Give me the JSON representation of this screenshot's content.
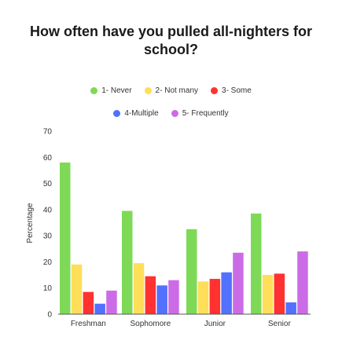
{
  "chart_data": {
    "type": "bar",
    "title": "How often have you pulled all-nighters for school?",
    "title_lines": [
      "How often have you pulled all-nighters for",
      "school?"
    ],
    "ylabel": "Percentage",
    "xlabel": "",
    "ylim": [
      0,
      70
    ],
    "yticks": [
      "0",
      "10",
      "20",
      "30",
      "40",
      "50",
      "60",
      "70"
    ],
    "categories": [
      "Freshman",
      "Sophomore",
      "Junior",
      "Senior"
    ],
    "series": [
      {
        "name": "1- Never",
        "color": "#7ed957",
        "values": [
          58,
          39.5,
          32.5,
          38.5
        ]
      },
      {
        "name": "2- Not many",
        "color": "#ffde59",
        "values": [
          19,
          19.5,
          12.5,
          15
        ]
      },
      {
        "name": "3- Some",
        "color": "#ff3131",
        "values": [
          8.5,
          14.5,
          13.5,
          15.5
        ]
      },
      {
        "name": "4-Multiple",
        "color": "#5271ff",
        "values": [
          4,
          11,
          16,
          4.5
        ]
      },
      {
        "name": "5- Frequently",
        "color": "#cb6ce6",
        "values": [
          9,
          13,
          23.5,
          24
        ]
      }
    ],
    "grid": false,
    "legend_position": "top"
  }
}
